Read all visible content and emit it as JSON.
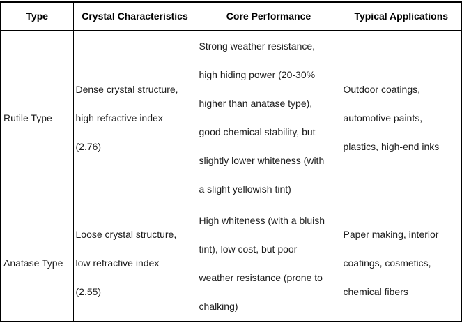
{
  "colors": {
    "border": "#000000",
    "header_text": "#000000",
    "body_text": "#1c1c1c",
    "background": "#ffffff"
  },
  "table": {
    "headers": [
      "Type",
      "Crystal Characteristics",
      "Core Performance",
      "Typical Applications"
    ],
    "rows": [
      {
        "type": "Rutile Type",
        "crystal": [
          "Dense crystal structure,",
          "high refractive index",
          "(2.76)"
        ],
        "core": [
          "Strong weather resistance,",
          "high hiding power (20-30%",
          "higher than anatase type),",
          "good chemical stability, but",
          "slightly lower whiteness (with",
          "a slight yellowish tint)"
        ],
        "applications": [
          "Outdoor coatings,",
          "automotive paints,",
          "plastics, high-end inks"
        ]
      },
      {
        "type": "Anatase Type",
        "crystal": [
          "Loose crystal structure,",
          "low refractive index",
          "(2.55)"
        ],
        "core": [
          "High whiteness (with a bluish",
          "tint), low cost, but poor",
          "weather resistance (prone to",
          "chalking)"
        ],
        "applications": [
          "Paper making, interior",
          "coatings, cosmetics,",
          "chemical fibers"
        ]
      }
    ]
  }
}
